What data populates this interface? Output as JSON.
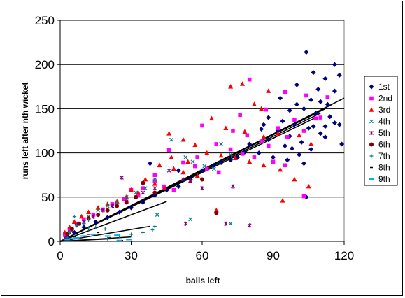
{
  "chart_data": {
    "type": "scatter",
    "title": "",
    "xlabel": "balls left",
    "ylabel": "runs left after nth wicket",
    "xlim": [
      0,
      120
    ],
    "ylim": [
      0,
      250
    ],
    "x_ticks": [
      "0",
      "30",
      "60",
      "90",
      "120"
    ],
    "y_ticks": [
      "0",
      "50",
      "100",
      "150",
      "200",
      "250"
    ],
    "grid": "horizontal",
    "legend_position": "right",
    "series": [
      {
        "name": "1st",
        "marker": "diamond",
        "color": "#000080",
        "points": [
          [
            104,
            214
          ],
          [
            107,
            191
          ],
          [
            116,
            200
          ],
          [
            118,
            188
          ],
          [
            112,
            184
          ],
          [
            100,
            177
          ],
          [
            109,
            172
          ],
          [
            116,
            170
          ],
          [
            93,
            162
          ],
          [
            100,
            155
          ],
          [
            106,
            160
          ],
          [
            110,
            158
          ],
          [
            113,
            155
          ],
          [
            97,
            148
          ],
          [
            103,
            150
          ],
          [
            108,
            145
          ],
          [
            114,
            141
          ],
          [
            88,
            140
          ],
          [
            94,
            136
          ],
          [
            99,
            132
          ],
          [
            105,
            128
          ],
          [
            110,
            122
          ],
          [
            116,
            134
          ],
          [
            92,
            125
          ],
          [
            97,
            119
          ],
          [
            102,
            112
          ],
          [
            107,
            130
          ],
          [
            112,
            118
          ],
          [
            119,
            110
          ],
          [
            85,
            127
          ],
          [
            88,
            115
          ],
          [
            95,
            108
          ],
          [
            101,
            98
          ],
          [
            106,
            104
          ],
          [
            84,
            100
          ],
          [
            90,
            95
          ],
          [
            96,
            92
          ],
          [
            103,
            88
          ],
          [
            98,
            105
          ],
          [
            80,
            110
          ],
          [
            78,
            101
          ],
          [
            75,
            95
          ],
          [
            72,
            92
          ],
          [
            68,
            89
          ],
          [
            65,
            86
          ],
          [
            60,
            80
          ],
          [
            55,
            70
          ],
          [
            50,
            62
          ],
          [
            45,
            58
          ],
          [
            40,
            52
          ],
          [
            35,
            44
          ],
          [
            30,
            38
          ],
          [
            25,
            33
          ],
          [
            20,
            27
          ],
          [
            15,
            22
          ],
          [
            10,
            16
          ],
          [
            6,
            10
          ],
          [
            3,
            5
          ],
          [
            38,
            88
          ],
          [
            50,
            80
          ],
          [
            104,
            50
          ],
          [
            112,
            130
          ],
          [
            86,
            132
          ],
          [
            118,
            132
          ]
        ]
      },
      {
        "name": "2nd",
        "marker": "square",
        "color": "#FF00FF",
        "points": [
          [
            80,
            183
          ],
          [
            95,
            169
          ],
          [
            104,
            165
          ],
          [
            113,
            163
          ],
          [
            76,
            143
          ],
          [
            87,
            149
          ],
          [
            92,
            128
          ],
          [
            99,
            137
          ],
          [
            108,
            139
          ],
          [
            60,
            131
          ],
          [
            73,
            125
          ],
          [
            79,
            120
          ],
          [
            85,
            113
          ],
          [
            88,
            108
          ],
          [
            96,
            118
          ],
          [
            103,
            125
          ],
          [
            110,
            140
          ],
          [
            66,
            110
          ],
          [
            72,
            104
          ],
          [
            77,
            99
          ],
          [
            82,
            95
          ],
          [
            90,
            90
          ],
          [
            95,
            86
          ],
          [
            103,
            51
          ],
          [
            46,
            103
          ],
          [
            52,
            89
          ],
          [
            57,
            85
          ],
          [
            62,
            82
          ],
          [
            67,
            78
          ],
          [
            40,
            68
          ],
          [
            44,
            62
          ],
          [
            48,
            58
          ],
          [
            30,
            58
          ],
          [
            33,
            52
          ],
          [
            27,
            48
          ],
          [
            22,
            42
          ],
          [
            18,
            36
          ],
          [
            14,
            30
          ],
          [
            10,
            25
          ],
          [
            7,
            20
          ],
          [
            4,
            14
          ],
          [
            2,
            8
          ],
          [
            35,
            60
          ],
          [
            40,
            75
          ],
          [
            58,
            95
          ]
        ]
      },
      {
        "name": "3rd",
        "marker": "triangle",
        "color": "#FF0000",
        "points": [
          [
            77,
            178
          ],
          [
            72,
            175
          ],
          [
            88,
            170
          ],
          [
            82,
            155
          ],
          [
            85,
            150
          ],
          [
            64,
            139
          ],
          [
            70,
            128
          ],
          [
            78,
            124
          ],
          [
            86,
            118
          ],
          [
            92,
            122
          ],
          [
            101,
            120
          ],
          [
            106,
            110
          ],
          [
            46,
            122
          ],
          [
            52,
            115
          ],
          [
            57,
            109
          ],
          [
            62,
            100
          ],
          [
            68,
            97
          ],
          [
            74,
            94
          ],
          [
            80,
            90
          ],
          [
            86,
            86
          ],
          [
            93,
            81
          ],
          [
            99,
            70
          ],
          [
            105,
            62
          ],
          [
            47,
            95
          ],
          [
            54,
            90
          ],
          [
            42,
            86
          ],
          [
            48,
            82
          ],
          [
            52,
            78
          ],
          [
            58,
            74
          ],
          [
            36,
            70
          ],
          [
            40,
            65
          ],
          [
            44,
            60
          ],
          [
            30,
            58
          ],
          [
            33,
            55
          ],
          [
            28,
            50
          ],
          [
            24,
            45
          ],
          [
            20,
            42
          ],
          [
            16,
            38
          ],
          [
            12,
            33
          ],
          [
            9,
            28
          ],
          [
            6,
            22
          ],
          [
            4,
            16
          ],
          [
            2,
            10
          ],
          [
            94,
            46
          ],
          [
            66,
            35
          ],
          [
            55,
            68
          ]
        ]
      },
      {
        "name": "4th",
        "marker": "x",
        "color": "#008080",
        "points": [
          [
            47,
            115
          ],
          [
            68,
            110
          ],
          [
            72,
            98
          ],
          [
            56,
            90
          ],
          [
            61,
            85
          ],
          [
            65,
            82
          ],
          [
            53,
            95
          ],
          [
            40,
            70
          ],
          [
            36,
            60
          ],
          [
            32,
            55
          ],
          [
            28,
            50
          ],
          [
            24,
            44
          ],
          [
            20,
            40
          ],
          [
            16,
            35
          ],
          [
            12,
            28
          ],
          [
            8,
            20
          ],
          [
            5,
            12
          ],
          [
            3,
            7
          ],
          [
            72,
            20
          ],
          [
            55,
            25
          ],
          [
            41,
            30
          ]
        ]
      },
      {
        "name": "5th",
        "marker": "star",
        "color": "#800080",
        "points": [
          [
            55,
            68
          ],
          [
            60,
            60
          ],
          [
            73,
            62
          ],
          [
            52,
            70
          ],
          [
            46,
            80
          ],
          [
            40,
            60
          ],
          [
            35,
            55
          ],
          [
            28,
            45
          ],
          [
            26,
            72
          ],
          [
            22,
            40
          ],
          [
            18,
            35
          ],
          [
            14,
            28
          ],
          [
            10,
            22
          ],
          [
            7,
            18
          ],
          [
            4,
            10
          ],
          [
            2,
            4
          ],
          [
            53,
            20
          ],
          [
            70,
            20
          ],
          [
            80,
            18
          ]
        ]
      },
      {
        "name": "6th",
        "marker": "circle",
        "color": "#800000",
        "points": [
          [
            60,
            70
          ],
          [
            66,
            32
          ],
          [
            35,
            66
          ],
          [
            40,
            55
          ],
          [
            32,
            50
          ],
          [
            28,
            44
          ],
          [
            24,
            40
          ],
          [
            20,
            35
          ],
          [
            16,
            30
          ],
          [
            12,
            26
          ],
          [
            8,
            20
          ],
          [
            5,
            14
          ],
          [
            3,
            8
          ]
        ]
      },
      {
        "name": "7th",
        "marker": "plus",
        "color": "#008080",
        "points": [
          [
            39,
            13
          ],
          [
            35,
            10
          ],
          [
            30,
            8
          ],
          [
            25,
            6
          ],
          [
            19,
            14
          ],
          [
            15,
            16
          ],
          [
            12,
            24
          ],
          [
            10,
            20
          ],
          [
            7,
            18
          ],
          [
            6,
            28
          ],
          [
            4,
            10
          ],
          [
            3,
            4
          ],
          [
            20,
            3
          ],
          [
            40,
            17
          ],
          [
            12,
            14
          ]
        ]
      },
      {
        "name": "8th",
        "marker": "dash",
        "color": "#000000",
        "points": [
          [
            16,
            10
          ],
          [
            12,
            8
          ],
          [
            9,
            6
          ],
          [
            6,
            5
          ],
          [
            4,
            3
          ],
          [
            3,
            2
          ],
          [
            2,
            1
          ],
          [
            21,
            4
          ],
          [
            26,
            1
          ]
        ]
      },
      {
        "name": "9th",
        "marker": "hline",
        "color": "#00B0F0",
        "points": [
          [
            14,
            8
          ],
          [
            10,
            6
          ],
          [
            7,
            4
          ],
          [
            5,
            3
          ],
          [
            3,
            2
          ],
          [
            20,
            6
          ],
          [
            24,
            7
          ],
          [
            29,
            2
          ],
          [
            25,
            1
          ]
        ]
      }
    ],
    "trendlines": [
      {
        "series": "1st",
        "x": [
          0,
          120
        ],
        "y": [
          0,
          162
        ]
      },
      {
        "series": "2nd",
        "x": [
          0,
          115
        ],
        "y": [
          0,
          155
        ]
      },
      {
        "series": "3rd",
        "x": [
          0,
          112
        ],
        "y": [
          0,
          150
        ]
      },
      {
        "series": "4th",
        "x": [
          0,
          110
        ],
        "y": [
          0,
          145
        ]
      },
      {
        "series": "5th",
        "x": [
          0,
          108
        ],
        "y": [
          0,
          140
        ]
      },
      {
        "series": "6th",
        "x": [
          0,
          45
        ],
        "y": [
          0,
          45
        ]
      },
      {
        "series": "7th",
        "x": [
          0,
          38
        ],
        "y": [
          0,
          17
        ]
      },
      {
        "series": "8th",
        "x": [
          0,
          30
        ],
        "y": [
          0,
          5
        ]
      },
      {
        "series": "9th",
        "x": [
          0,
          22
        ],
        "y": [
          0,
          3
        ]
      }
    ]
  }
}
